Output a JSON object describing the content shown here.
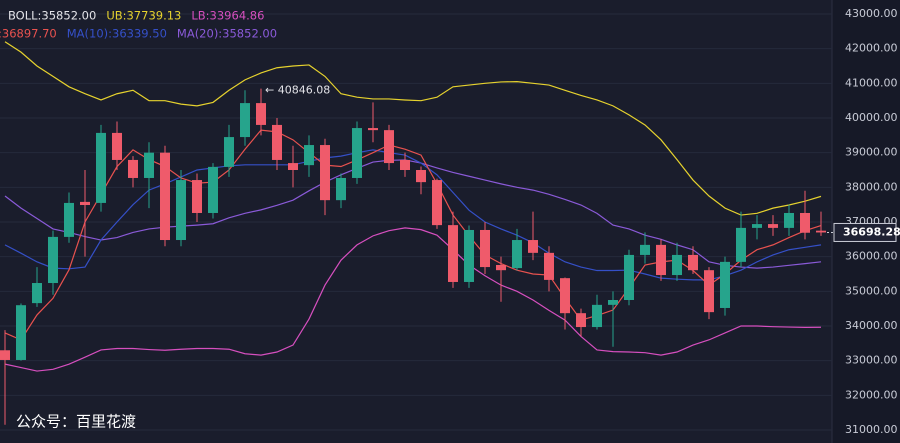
{
  "chart_data": {
    "type": "candlestick",
    "ylim": [
      31000,
      43000
    ],
    "yticks": [
      {
        "value": 31000,
        "label": "31000.00"
      },
      {
        "value": 32000,
        "label": "32000.00"
      },
      {
        "value": 33000,
        "label": "33000.00"
      },
      {
        "value": 34000,
        "label": "34000.00"
      },
      {
        "value": 35000,
        "label": "35000.00"
      },
      {
        "value": 36000,
        "label": "36000.00"
      },
      {
        "value": 37000,
        "label": "37000.00"
      },
      {
        "value": 38000,
        "label": "38000.00"
      },
      {
        "value": 39000,
        "label": "39000.00"
      },
      {
        "value": 40000,
        "label": "40000.00"
      },
      {
        "value": 41000,
        "label": "41000.00"
      },
      {
        "value": 42000,
        "label": "42000.00"
      },
      {
        "value": 43000,
        "label": "43000.00"
      }
    ],
    "grid": true,
    "up_color": "#26a48c",
    "down_color": "#ef5b6b",
    "open": [
      33300,
      33020,
      34660,
      35240,
      36570,
      37580,
      37550,
      39570,
      38790,
      38270,
      39000,
      36480,
      38210,
      37260,
      38590,
      39450,
      40430,
      39800,
      38700,
      38640,
      39220,
      37630,
      38270,
      39710,
      39650,
      38790,
      38500,
      38210,
      36910,
      35270,
      36770,
      35760,
      35670,
      36480,
      36110,
      35380,
      34370,
      33970,
      34610,
      34750,
      36050,
      36340,
      35470,
      36050,
      35610,
      34520,
      35850,
      36830,
      36940,
      36830,
      37260,
      36750
    ],
    "close": [
      33020,
      34600,
      35240,
      36570,
      37550,
      37490,
      39570,
      38790,
      38270,
      39000,
      36480,
      38210,
      37260,
      38590,
      39450,
      40430,
      39800,
      38790,
      38500,
      39220,
      37630,
      38270,
      39710,
      39650,
      38700,
      38500,
      38150,
      36910,
      35270,
      36770,
      35700,
      35610,
      36480,
      36110,
      35330,
      34370,
      33970,
      34610,
      34750,
      36050,
      36340,
      35470,
      36050,
      35610,
      34400,
      35850,
      36830,
      36940,
      36830,
      37260,
      36690,
      36698.28
    ],
    "high": [
      33880,
      34650,
      35700,
      36750,
      37850,
      38500,
      39800,
      39900,
      38900,
      39300,
      39200,
      38500,
      38400,
      38700,
      39800,
      40800,
      40846.08,
      40000,
      39200,
      39500,
      39400,
      38400,
      39900,
      40450,
      39800,
      39000,
      38600,
      38250,
      37300,
      36900,
      37000,
      36000,
      36800,
      37300,
      36300,
      35400,
      34500,
      34900,
      35000,
      36200,
      36700,
      36500,
      36400,
      36300,
      35700,
      36000,
      37300,
      37200,
      37200,
      37500,
      37900,
      37300
    ],
    "low": [
      31150,
      33000,
      34550,
      34900,
      36400,
      36000,
      37300,
      38500,
      38000,
      37400,
      36300,
      36300,
      37000,
      37100,
      38300,
      39200,
      39500,
      38500,
      38000,
      38300,
      37200,
      37400,
      38100,
      39300,
      38500,
      38300,
      37800,
      36800,
      35100,
      35100,
      35500,
      34700,
      35600,
      35900,
      35000,
      33900,
      33700,
      33900,
      33400,
      34600,
      35800,
      35300,
      35300,
      35500,
      34200,
      34300,
      35700,
      36500,
      36600,
      36600,
      36500,
      36600
    ],
    "lines": [
      {
        "color": "#e6d22e",
        "values": [
          42200,
          41900,
          41500,
          41200,
          40900,
          40700,
          40520,
          40700,
          40800,
          40500,
          40500,
          40400,
          40350,
          40450,
          40800,
          41100,
          41300,
          41450,
          41500,
          41530,
          41200,
          40700,
          40600,
          40550,
          40550,
          40520,
          40500,
          40600,
          40900,
          40950,
          41000,
          41040,
          41050,
          41000,
          40950,
          40800,
          40650,
          40520,
          40350,
          40090,
          39800,
          39370,
          38800,
          38210,
          37750,
          37400,
          37200,
          37250,
          37400,
          37490,
          37600,
          37739.13
        ]
      },
      {
        "color": "#d64fbf",
        "values": [
          32900,
          32800,
          32700,
          32750,
          32900,
          33100,
          33310,
          33350,
          33350,
          33320,
          33300,
          33330,
          33350,
          33350,
          33330,
          33200,
          33160,
          33250,
          33450,
          34200,
          35180,
          35900,
          36340,
          36600,
          36750,
          36830,
          36780,
          36620,
          36200,
          35760,
          35450,
          35180,
          35000,
          34750,
          34450,
          34170,
          33700,
          33310,
          33260,
          33250,
          33230,
          33160,
          33250,
          33450,
          33600,
          33800,
          34000,
          34000,
          33980,
          33970,
          33960,
          33964.86
        ]
      },
      {
        "color": "#8a5ad8",
        "values": [
          37750,
          37400,
          37100,
          36800,
          36700,
          36580,
          36480,
          36550,
          36700,
          36800,
          36850,
          36880,
          36910,
          36950,
          37120,
          37250,
          37350,
          37480,
          37630,
          37900,
          38150,
          38360,
          38550,
          38730,
          38780,
          38790,
          38700,
          38560,
          38430,
          38320,
          38210,
          38100,
          38000,
          37920,
          37800,
          37650,
          37490,
          37250,
          36910,
          36800,
          36620,
          36500,
          36340,
          36200,
          35850,
          35750,
          35700,
          35670,
          35700,
          35750,
          35800,
          35852
        ]
      },
      {
        "color": "#3550c8",
        "values": [
          36340,
          36100,
          35850,
          35670,
          35650,
          35700,
          36480,
          37000,
          37500,
          37920,
          38100,
          38300,
          38500,
          38560,
          38620,
          38650,
          38650,
          38650,
          38650,
          38750,
          38850,
          38900,
          39000,
          39080,
          39000,
          38930,
          38700,
          38360,
          37850,
          37340,
          37000,
          36800,
          36620,
          36400,
          36100,
          35850,
          35700,
          35600,
          35600,
          35610,
          35500,
          35380,
          35350,
          35330,
          35330,
          35450,
          35610,
          35850,
          36050,
          36200,
          36270,
          36339.5
        ]
      },
      {
        "color": "#e8524f",
        "values": [
          33800,
          33600,
          34320,
          34800,
          35620,
          37000,
          37800,
          38600,
          39080,
          38800,
          38600,
          38270,
          38120,
          38150,
          38500,
          39100,
          39650,
          39600,
          39370,
          39000,
          38640,
          38600,
          38790,
          39000,
          39220,
          39100,
          38930,
          38100,
          37200,
          36600,
          36050,
          35800,
          35610,
          35500,
          35470,
          34800,
          34170,
          34300,
          34460,
          35100,
          35760,
          35850,
          35900,
          35600,
          35180,
          35500,
          35900,
          36200,
          36340,
          36550,
          36750,
          36897.7
        ]
      }
    ],
    "legend": [
      [
        {
          "text": "BOLL:35852.00",
          "color": "#e3e3e8"
        },
        {
          "text": "UB:37739.13",
          "color": "#e6d22e"
        },
        {
          "text": "LB:33964.86",
          "color": "#d64fbf"
        }
      ],
      [
        {
          "text": ":36897.70",
          "color": "#e8524f"
        },
        {
          "text": "MA(10):36339.50",
          "color": "#3550c8"
        },
        {
          "text": "MA(20):35852.00",
          "color": "#8a5ad8"
        }
      ]
    ],
    "high_annotation": "← 40846.08",
    "last_price_label": "36698.28",
    "watermark": "公众号：百里花渡"
  }
}
